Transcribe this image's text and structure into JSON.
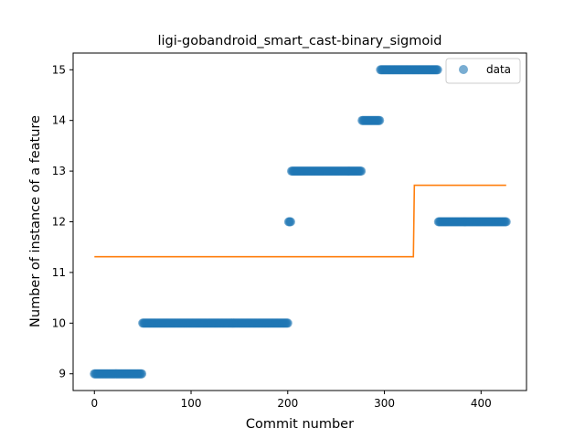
{
  "chart_data": {
    "type": "scatter",
    "title": "ligi-gobandroid_smart_cast-binary_sigmoid",
    "xlabel": "Commit number",
    "ylabel": "Number of instance of a feature",
    "xlim": [
      -22,
      447
    ],
    "ylim": [
      8.67,
      15.33
    ],
    "xticks": [
      0,
      100,
      200,
      300,
      400
    ],
    "yticks": [
      9,
      10,
      11,
      12,
      13,
      14,
      15
    ],
    "grid": false,
    "legend_position": "top-right",
    "series": [
      {
        "name": "data",
        "kind": "scatter",
        "color": "#1f77b4",
        "alpha": 0.6,
        "segments": [
          {
            "x_start": 0,
            "x_end": 49,
            "y": 9
          },
          {
            "x_start": 50,
            "x_end": 200,
            "y": 10
          },
          {
            "x_start": 201,
            "x_end": 203,
            "y": 12
          },
          {
            "x_start": 204,
            "x_end": 276,
            "y": 13
          },
          {
            "x_start": 277,
            "x_end": 295,
            "y": 14
          },
          {
            "x_start": 296,
            "x_end": 355,
            "y": 15
          },
          {
            "x_start": 356,
            "x_end": 426,
            "y": 12
          }
        ]
      },
      {
        "kind": "line",
        "color": "#ff7f0e",
        "points": [
          [
            0,
            11.31
          ],
          [
            330,
            11.31
          ],
          [
            331,
            12.72
          ],
          [
            426,
            12.72
          ]
        ]
      }
    ]
  }
}
